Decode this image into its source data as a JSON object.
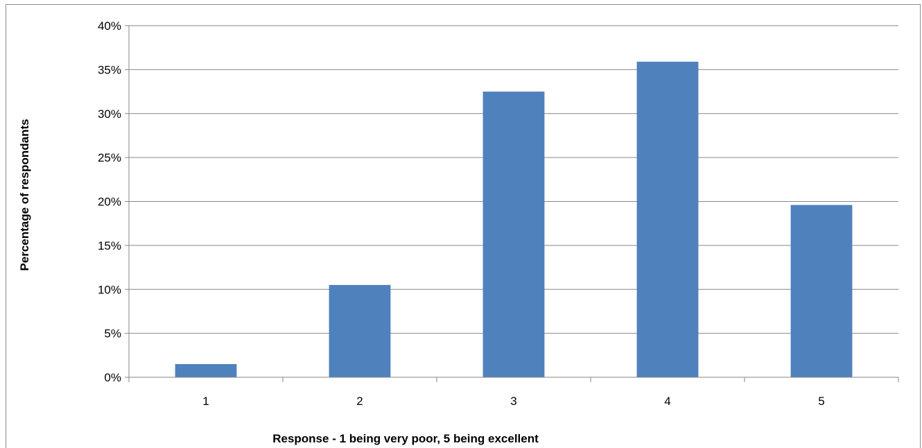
{
  "chart_data": {
    "type": "bar",
    "title": "",
    "categories": [
      "1",
      "2",
      "3",
      "4",
      "5"
    ],
    "values": [
      1.5,
      10.5,
      32.5,
      35.9,
      19.6
    ],
    "value_unit": "%",
    "xlabel": "Response - 1 being very poor, 5 being excellent",
    "ylabel": "Percentage of respondants",
    "ylim": [
      0,
      40
    ],
    "yticks": [
      "0%",
      "5%",
      "10%",
      "15%",
      "20%",
      "25%",
      "30%",
      "35%",
      "40%"
    ],
    "grid": true,
    "legend": "none",
    "bar_color": "#4f81bd",
    "grid_color": "#868686"
  }
}
